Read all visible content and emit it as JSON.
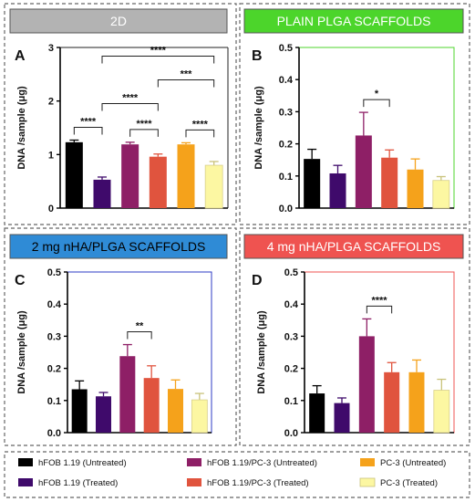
{
  "figure": {
    "legend": [
      {
        "label": "hFOB 1.19 (Untreated)",
        "color": "#000000"
      },
      {
        "label": "hFOB 1.19 (Treated)",
        "color": "#3f0a6b"
      },
      {
        "label": "hFOB 1.19/PC-3 (Untreated)",
        "color": "#8e1f66"
      },
      {
        "label": "hFOB 1.19/PC-3 (Treated)",
        "color": "#e0543e"
      },
      {
        "label": "PC-3 (Untreated)",
        "color": "#f5a21b"
      },
      {
        "label": "PC-3 (Treated)",
        "color": "#fcf7a2"
      }
    ]
  },
  "chart_data": [
    {
      "type": "bar",
      "panel_letter": "A",
      "banner": {
        "text": "2D",
        "fill": "#b3b3b3",
        "text_color": "#ffffff"
      },
      "frame_color": "#000000",
      "ylabel": "DNA /sample (μg)",
      "ylim": [
        0,
        3
      ],
      "yticks": [
        "0",
        "1",
        "2",
        "3"
      ],
      "values": [
        1.23,
        0.53,
        1.19,
        0.96,
        1.19,
        0.8
      ],
      "errors": [
        0.04,
        0.05,
        0.04,
        0.05,
        0.03,
        0.07
      ],
      "significance": [
        {
          "from": 0,
          "to": 1,
          "label": "****"
        },
        {
          "from": 2,
          "to": 3,
          "label": "****"
        },
        {
          "from": 4,
          "to": 5,
          "label": "****"
        },
        {
          "from": 1,
          "to": 3,
          "label": "****"
        },
        {
          "from": 3,
          "to": 5,
          "label": "***"
        },
        {
          "from": 1,
          "to": 5,
          "label": "****"
        }
      ]
    },
    {
      "type": "bar",
      "panel_letter": "B",
      "banner": {
        "text": "PLAIN PLGA SCAFFOLDS",
        "fill": "#4cd52b",
        "text_color": "#ffffff"
      },
      "frame_color": "#4cd52b",
      "ylabel": "DNA /sample (μg)",
      "ylim": [
        0,
        0.5
      ],
      "yticks": [
        "0.0",
        "0.1",
        "0.2",
        "0.3",
        "0.4",
        "0.5"
      ],
      "values": [
        0.153,
        0.108,
        0.226,
        0.157,
        0.12,
        0.086
      ],
      "errors": [
        0.03,
        0.025,
        0.072,
        0.024,
        0.033,
        0.012
      ],
      "significance": [
        {
          "from": 2,
          "to": 3,
          "label": "*"
        }
      ]
    },
    {
      "type": "bar",
      "panel_letter": "C",
      "banner": {
        "text": "2 mg nHA/PLGA SCAFFOLDS",
        "fill": "#2f8bd6",
        "text_color": "#000000"
      },
      "frame_color": "#2e3bc4",
      "ylabel": "DNA /sample (μg)",
      "ylim": [
        0,
        0.5
      ],
      "yticks": [
        "0.0",
        "0.1",
        "0.2",
        "0.3",
        "0.4",
        "0.5"
      ],
      "values": [
        0.135,
        0.113,
        0.238,
        0.17,
        0.136,
        0.102
      ],
      "errors": [
        0.026,
        0.012,
        0.036,
        0.038,
        0.028,
        0.02
      ],
      "significance": [
        {
          "from": 2,
          "to": 3,
          "label": "**"
        }
      ]
    },
    {
      "type": "bar",
      "panel_letter": "D",
      "banner": {
        "text": "4 mg nHA/PLGA SCAFFOLDS",
        "fill": "#ef5350",
        "text_color": "#ffffff"
      },
      "frame_color": "#ef5350",
      "ylabel": "DNA /sample (μg)",
      "ylim": [
        0,
        0.5
      ],
      "yticks": [
        "0.0",
        "0.1",
        "0.2",
        "0.3",
        "0.4",
        "0.5"
      ],
      "values": [
        0.122,
        0.092,
        0.3,
        0.188,
        0.188,
        0.132
      ],
      "errors": [
        0.024,
        0.016,
        0.054,
        0.03,
        0.038,
        0.034
      ],
      "significance": [
        {
          "from": 2,
          "to": 3,
          "label": "****"
        }
      ]
    }
  ]
}
